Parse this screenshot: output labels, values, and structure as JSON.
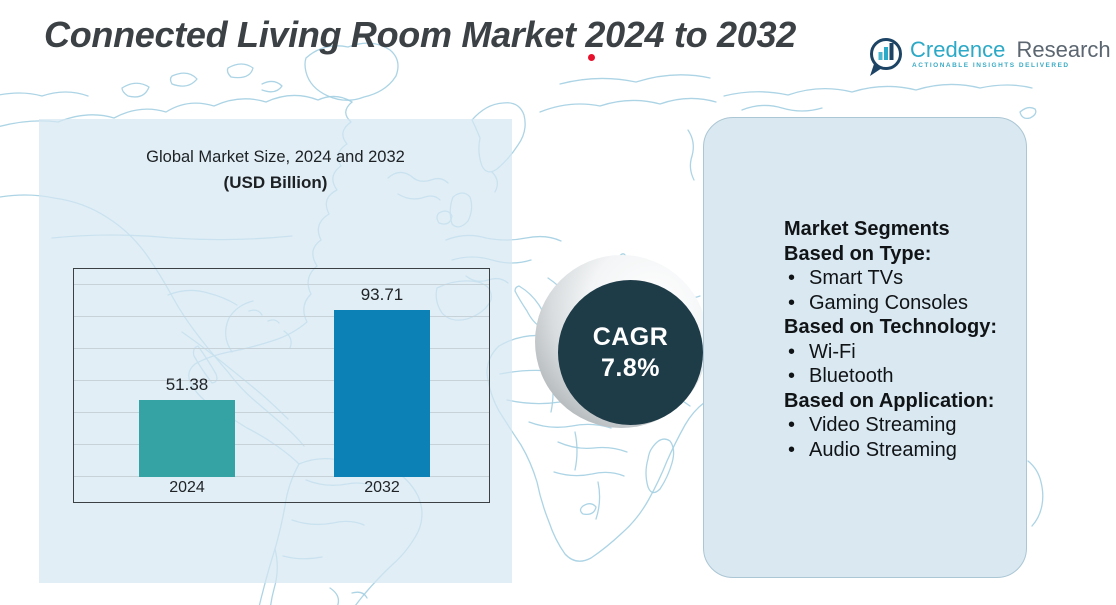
{
  "header": {
    "title": "Connected Living Room Market 2024 to 2032",
    "logo": {
      "brand_primary": "Credence",
      "brand_secondary": "Research",
      "tagline": "Actionable Insights Delivered",
      "icon": "bar-chart-speech-bubble-icon"
    }
  },
  "chart_panel": {
    "title_line1": "Global Market Size, 2024 and 2032",
    "title_line2": "(USD Billion)"
  },
  "chart_data": {
    "type": "bar",
    "title": "Global Market Size, 2024 and 2032 (USD Billion)",
    "categories": [
      "2024",
      "2032"
    ],
    "values": [
      51.38,
      93.71
    ],
    "series": [
      {
        "name": "Global Market Size (USD Billion)",
        "values": [
          51.38,
          93.71
        ]
      }
    ],
    "bar_colors": [
      "#35a2a3",
      "#0b81b5"
    ],
    "grid": true,
    "gridline_count": 7,
    "ylim": [
      15,
      112.5
    ],
    "legend_position": "none"
  },
  "cagr_badge": {
    "label": "CAGR",
    "value": "7.8%",
    "circle_color": "#1e3b48"
  },
  "segments_panel": {
    "heading": "Market Segments",
    "bullet": "•",
    "groups": [
      {
        "label": "Based on Type:",
        "items": [
          "Smart TVs",
          "Gaming Consoles"
        ]
      },
      {
        "label": "Based on Technology:",
        "items": [
          "Wi-Fi",
          "Bluetooth"
        ]
      },
      {
        "label": "Based on Application:",
        "items": [
          "Video Streaming",
          "Audio Streaming"
        ]
      }
    ]
  },
  "colors": {
    "bar_2024": "#35a2a3",
    "bar_2032": "#0b81b5",
    "cagr_circle": "#1e3b48",
    "panel_fill": "#d9e8f1",
    "map_stroke": "#a3cfe2",
    "accent_red": "#e8112d",
    "logo_teal": "#2ba9c6"
  }
}
